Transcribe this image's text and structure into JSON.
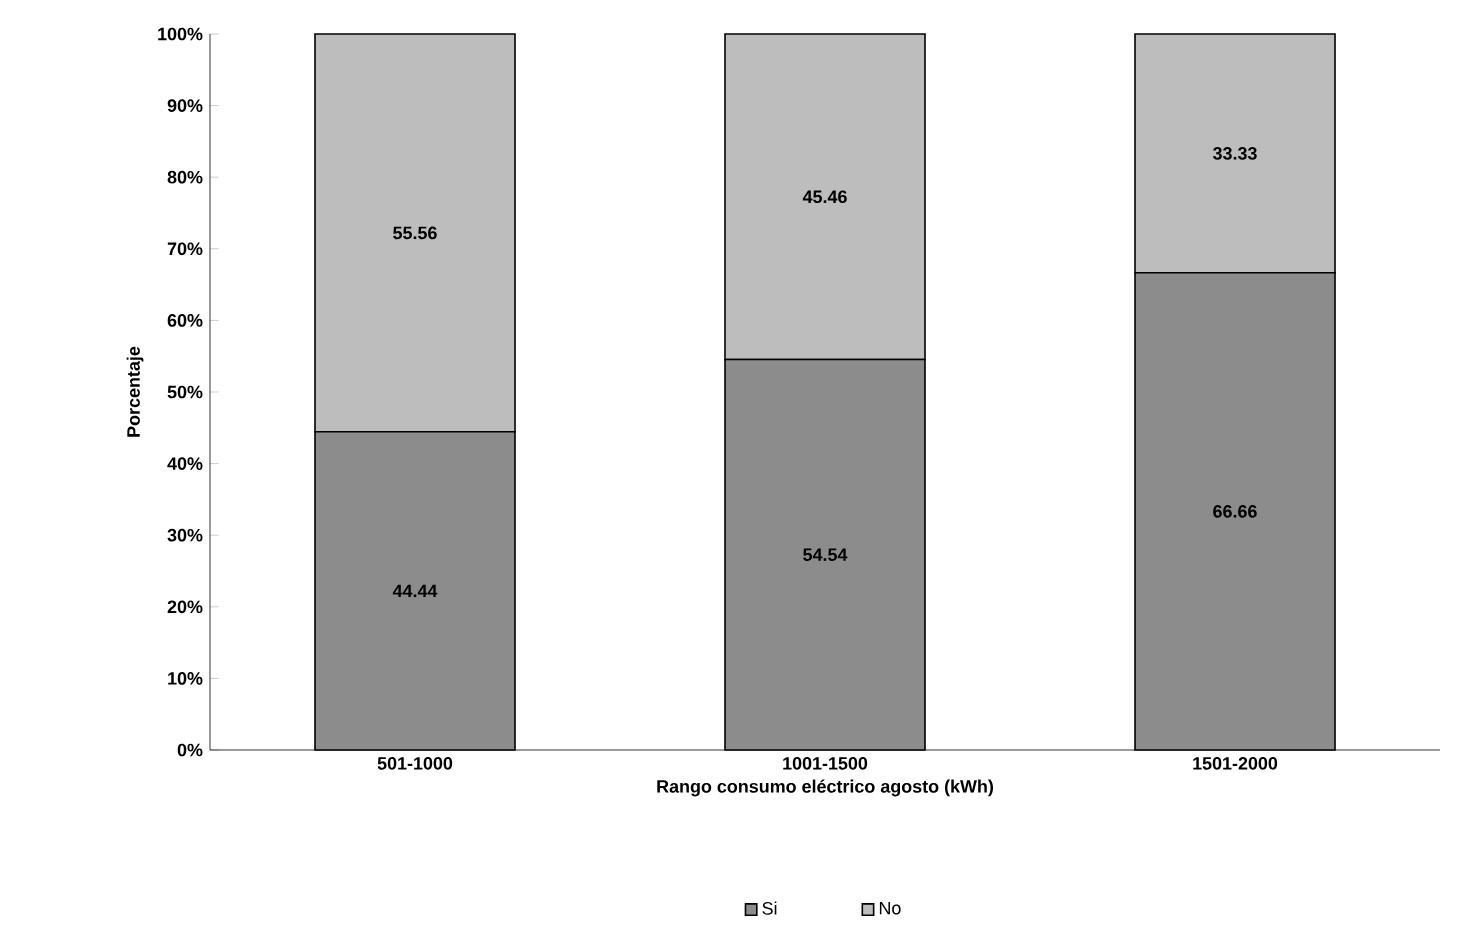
{
  "chart_data": {
    "type": "bar",
    "stacked": true,
    "xlabel": "Rango consumo eléctrico agosto (kWh)",
    "ylabel": "Porcentaje",
    "categories": [
      "501-1000",
      "1001-1500",
      "1501-2000"
    ],
    "series": [
      {
        "name": "Si",
        "color": "#8c8c8c",
        "values": [
          44.44,
          54.54,
          66.66
        ]
      },
      {
        "name": "No",
        "color": "#bdbdbd",
        "values": [
          55.56,
          45.46,
          33.33
        ]
      }
    ],
    "ylim": [
      0,
      100
    ],
    "yticks": [
      {
        "value": 0,
        "label": "0%"
      },
      {
        "value": 10,
        "label": "10%"
      },
      {
        "value": 20,
        "label": "20%"
      },
      {
        "value": 30,
        "label": "30%"
      },
      {
        "value": 40,
        "label": "40%"
      },
      {
        "value": 50,
        "label": "50%"
      },
      {
        "value": 60,
        "label": "60%"
      },
      {
        "value": 70,
        "label": "70%"
      },
      {
        "value": 80,
        "label": "80%"
      },
      {
        "value": 90,
        "label": "90%"
      },
      {
        "value": 100,
        "label": "100%"
      }
    ],
    "data_labels": true,
    "legend": "bottom"
  }
}
